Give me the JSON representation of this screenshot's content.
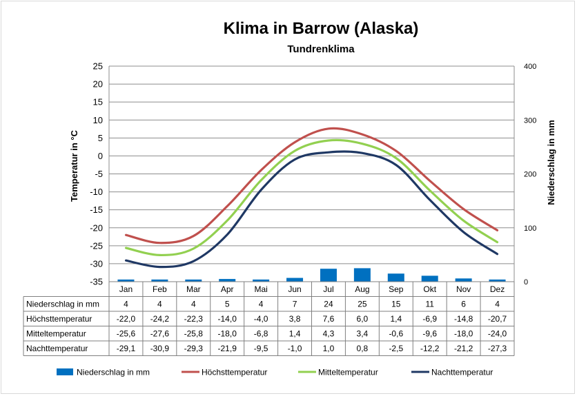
{
  "chart_data": {
    "type": "bar+line",
    "title": "Klima in Barrow (Alaska)",
    "subtitle": "Tundrenklima",
    "ylabel_left": "Temperatur in °C",
    "ylabel_right": "Niederschlag in mm",
    "ylim_left": [
      -35,
      25
    ],
    "yticks_left": [
      "25",
      "20",
      "15",
      "10",
      "5",
      "0",
      "-5",
      "-10",
      "-15",
      "-20",
      "-25",
      "-30",
      "-35"
    ],
    "ylim_right": [
      0,
      400
    ],
    "yticks_right": [
      "400",
      "300",
      "200",
      "100",
      "0"
    ],
    "grid": true,
    "legend_position": "bottom",
    "categories": [
      "Jan",
      "Feb",
      "Mar",
      "Apr",
      "Mai",
      "Jun",
      "Jul",
      "Aug",
      "Sep",
      "Okt",
      "Nov",
      "Dez"
    ],
    "series": [
      {
        "name": "Niederschlag in mm",
        "type": "bar",
        "axis": "right",
        "color": "#0070c0",
        "values": [
          4,
          4,
          4,
          5,
          4,
          7,
          24,
          25,
          15,
          11,
          6,
          4
        ],
        "labels": [
          "4",
          "4",
          "4",
          "5",
          "4",
          "7",
          "24",
          "25",
          "15",
          "11",
          "6",
          "4"
        ]
      },
      {
        "name": "Höchsttemperatur",
        "type": "line",
        "axis": "left",
        "color": "#c0504d",
        "values": [
          -22.0,
          -24.2,
          -22.3,
          -14.0,
          -4.0,
          3.8,
          7.6,
          6.0,
          1.4,
          -6.9,
          -14.8,
          -20.7
        ],
        "labels": [
          "-22,0",
          "-24,2",
          "-22,3",
          "-14,0",
          "-4,0",
          "3,8",
          "7,6",
          "6,0",
          "1,4",
          "-6,9",
          "-14,8",
          "-20,7"
        ]
      },
      {
        "name": "Mitteltemperatur",
        "type": "line",
        "axis": "left",
        "color": "#92d050",
        "values": [
          -25.6,
          -27.6,
          -25.8,
          -18.0,
          -6.8,
          1.4,
          4.3,
          3.4,
          -0.6,
          -9.6,
          -18.0,
          -24.0
        ],
        "labels": [
          "-25,6",
          "-27,6",
          "-25,8",
          "-18,0",
          "-6,8",
          "1,4",
          "4,3",
          "3,4",
          "-0,6",
          "-9,6",
          "-18,0",
          "-24,0"
        ]
      },
      {
        "name": "Nachttemperatur",
        "type": "line",
        "axis": "left",
        "color": "#1f3864",
        "values": [
          -29.1,
          -30.9,
          -29.3,
          -21.9,
          -9.5,
          -1.0,
          1.0,
          0.8,
          -2.5,
          -12.2,
          -21.2,
          -27.3
        ],
        "labels": [
          "-29,1",
          "-30,9",
          "-29,3",
          "-21,9",
          "-9,5",
          "-1,0",
          "1,0",
          "0,8",
          "-2,5",
          "-12,2",
          "-21,2",
          "-27,3"
        ]
      }
    ]
  }
}
